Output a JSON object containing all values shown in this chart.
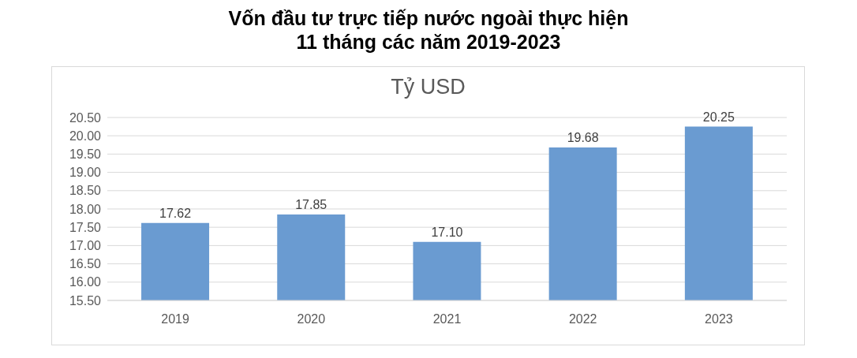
{
  "chart_data": {
    "type": "bar",
    "title": "Vốn đầu tư trực tiếp nước ngoài thực hiện\n11 tháng các năm 2019-2023",
    "subtitle": "Tỷ USD",
    "categories": [
      "2019",
      "2020",
      "2021",
      "2022",
      "2023"
    ],
    "values": [
      17.62,
      17.85,
      17.1,
      19.68,
      20.25
    ],
    "value_labels": [
      "17.62",
      "17.85",
      "17.10",
      "19.68",
      "20.25"
    ],
    "color": "#6a9bd1",
    "ylim": [
      15.5,
      20.5
    ],
    "yticks": [
      {
        "value": 15.5,
        "label": "15.50"
      },
      {
        "value": 16,
        "label": "16.00"
      },
      {
        "value": 16.5,
        "label": "16.50"
      },
      {
        "value": 17,
        "label": "17.00"
      },
      {
        "value": 17.5,
        "label": "17.50"
      },
      {
        "value": 18,
        "label": "18.00"
      },
      {
        "value": 18.5,
        "label": "18.50"
      },
      {
        "value": 19,
        "label": "19.00"
      },
      {
        "value": 19.5,
        "label": "19.50"
      },
      {
        "value": 20,
        "label": "20.00"
      },
      {
        "value": 20.5,
        "label": "20.50"
      }
    ],
    "grid": "y"
  }
}
